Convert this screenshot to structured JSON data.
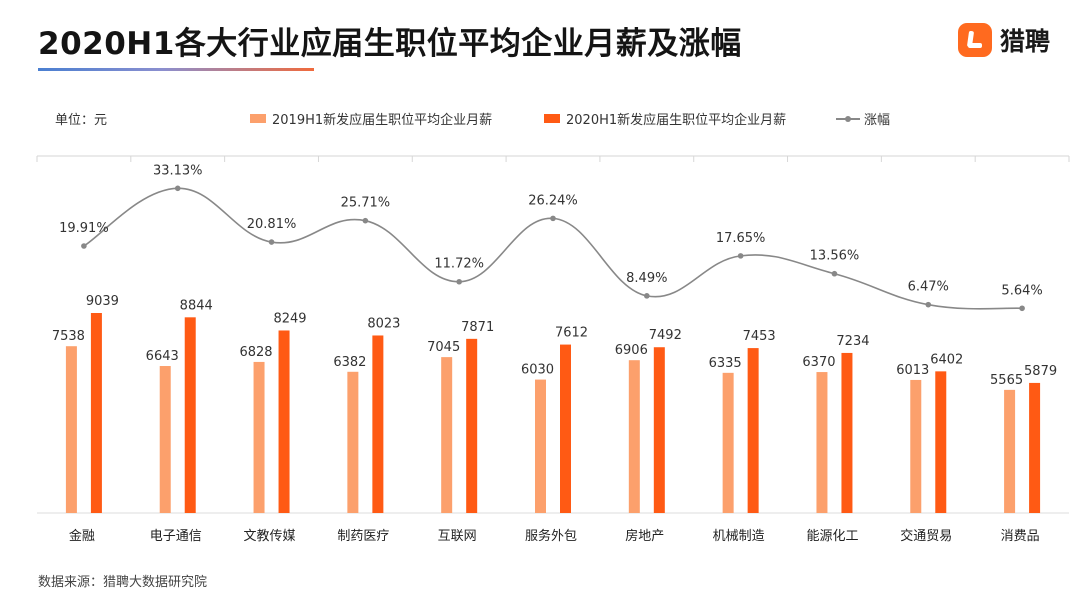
{
  "title": "2020H1各大行业应届生职位平均企业月薪及涨幅",
  "brand": {
    "name": "猎聘",
    "icon": "liepin-logo-icon"
  },
  "unit": "单位：元",
  "source": "数据来源：猎聘大数据研究院",
  "colors": {
    "series2019": "#fca06c",
    "series2020": "#ff5a14",
    "growth": "#888888",
    "title_underline_start": "#4a7fd1",
    "title_underline_end": "#f06a3c"
  },
  "chart_data": {
    "type": "bar",
    "categories": [
      "金融",
      "电子通信",
      "文教传媒",
      "制药医疗",
      "互联网",
      "服务外包",
      "房地产",
      "机械制造",
      "能源化工",
      "交通贸易",
      "消费品"
    ],
    "series": [
      {
        "name": "2019H1新发应届生职位平均企业月薪",
        "type": "bar",
        "values": [
          7538,
          6643,
          6828,
          6382,
          7045,
          6030,
          6906,
          6335,
          6370,
          6013,
          5565
        ]
      },
      {
        "name": "2020H1新发应届生职位平均企业月薪",
        "type": "bar",
        "values": [
          9039,
          8844,
          8249,
          8023,
          7871,
          7612,
          7492,
          7453,
          7234,
          6402,
          5879
        ]
      },
      {
        "name": "涨幅",
        "type": "line",
        "values": [
          19.91,
          33.13,
          20.81,
          25.71,
          11.72,
          26.24,
          8.49,
          17.65,
          13.56,
          6.47,
          5.64
        ],
        "labels": [
          "19.91%",
          "33.13%",
          "20.81%",
          "25.71%",
          "11.72%",
          "26.24%",
          "8.49%",
          "17.65%",
          "13.56%",
          "6.47%",
          "5.64%"
        ]
      }
    ],
    "ylabel": "单位：元",
    "legend": "top",
    "grid": false
  }
}
